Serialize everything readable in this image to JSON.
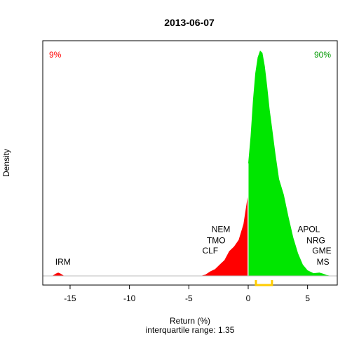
{
  "chart_data": {
    "type": "area",
    "title": "2013-06-07",
    "xlabel": "Return (%)",
    "ylabel": "Density",
    "subtitle": "interquartile range: 1.35",
    "xlim": [
      -17.3,
      7.5
    ],
    "ylim": [
      0,
      1
    ],
    "x_ticks": [
      -15,
      -10,
      -5,
      0,
      5
    ],
    "x_tick_labels": [
      "-15",
      "-10",
      "-5",
      "0",
      "5"
    ],
    "pct_negative": "9%",
    "pct_positive": "90%",
    "colors": {
      "negative": "#ff0000",
      "positive": "#00e600",
      "iqr": "#ffcc00",
      "axis": "#000000",
      "baseline": "#bebebe"
    },
    "density": {
      "x": [
        -16.5,
        -16.2,
        -16.0,
        -15.8,
        -15.5,
        -4.0,
        -3.6,
        -3.2,
        -2.8,
        -2.4,
        -2.0,
        -1.6,
        -1.2,
        -0.8,
        -0.4,
        -0.05,
        0.0,
        0.2,
        0.4,
        0.6,
        0.8,
        1.0,
        1.2,
        1.4,
        1.6,
        1.8,
        2.0,
        2.3,
        2.6,
        3.0,
        3.4,
        3.8,
        4.2,
        4.6,
        5.0,
        5.5,
        6.0,
        6.3,
        6.6,
        7.0
      ],
      "y": [
        0.0,
        0.01,
        0.015,
        0.01,
        0.0,
        0.0,
        0.006,
        0.02,
        0.03,
        0.05,
        0.07,
        0.11,
        0.13,
        0.16,
        0.23,
        0.35,
        0.5,
        0.62,
        0.78,
        0.9,
        0.97,
        1.0,
        0.99,
        0.93,
        0.84,
        0.74,
        0.66,
        0.54,
        0.43,
        0.36,
        0.26,
        0.17,
        0.1,
        0.05,
        0.025,
        0.012,
        0.015,
        0.01,
        0.004,
        0.0
      ]
    },
    "iqr": [
      0.65,
      2.0
    ],
    "annotations": [
      {
        "text": "IRM",
        "x": -15.6,
        "y": 0.05
      },
      {
        "text": "CLF",
        "x": -3.2,
        "y": 0.1
      },
      {
        "text": "TMO",
        "x": -2.7,
        "y": 0.145
      },
      {
        "text": "NEM",
        "x": -2.3,
        "y": 0.195
      },
      {
        "text": "MS",
        "x": 6.3,
        "y": 0.05
      },
      {
        "text": "GME",
        "x": 6.2,
        "y": 0.1
      },
      {
        "text": "NRG",
        "x": 5.7,
        "y": 0.145
      },
      {
        "text": "APOL",
        "x": 5.1,
        "y": 0.195
      }
    ]
  }
}
